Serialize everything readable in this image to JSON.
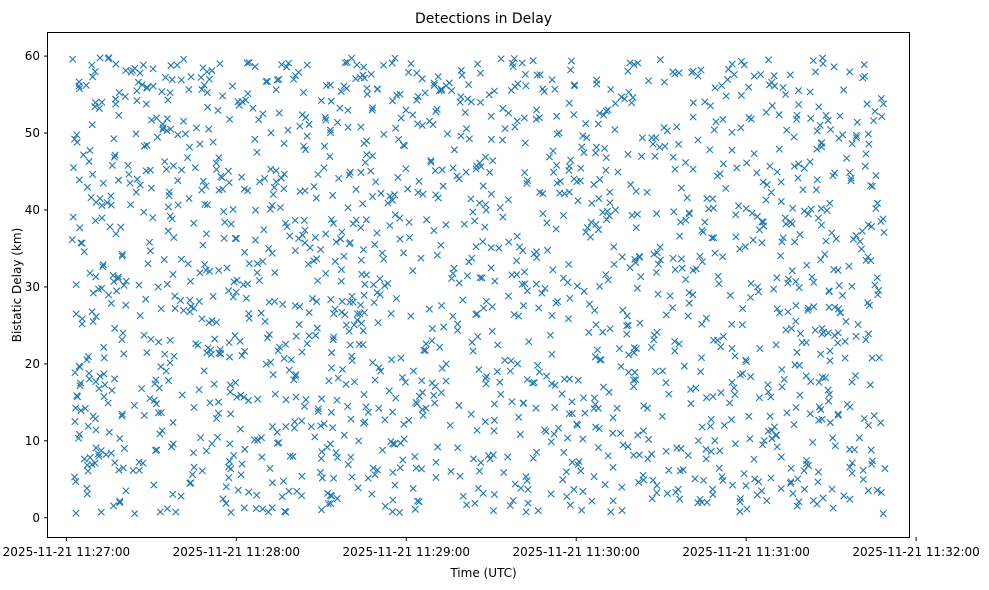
{
  "chart_data": {
    "type": "scatter",
    "title": "Detections in Delay",
    "xlabel": "Time (UTC)",
    "ylabel": "Bistatic Delay (km)",
    "marker": "x",
    "color": "#1f77b4",
    "grid": false,
    "legend": "none",
    "x_tick_labels": [
      "2025-11-21 11:27:00",
      "2025-11-21 11:28:00",
      "2025-11-21 11:29:00",
      "2025-11-21 11:30:00",
      "2025-11-21 11:31:00",
      "2025-11-21 11:32:00"
    ],
    "x_ticks_seconds_after_11_27_00": [
      0,
      60,
      120,
      180,
      240,
      300
    ],
    "y_tick_labels": [
      "0",
      "10",
      "20",
      "30",
      "40",
      "50",
      "60"
    ],
    "y_ticks": [
      0,
      10,
      20,
      30,
      40,
      50,
      60
    ],
    "xlim_seconds_after_11_27_00": [
      -6.5,
      297.5
    ],
    "ylim": [
      -2.5,
      63
    ],
    "x_data_range_seconds_after_11_27_00": [
      2,
      289
    ],
    "y_data_range": [
      0.5,
      59.8
    ],
    "approx_point_count": 1750,
    "series": [
      {
        "values": [
          [
            2.2,
            59.6
          ],
          [
            2.5,
            45.5
          ],
          [
            3.0,
            12.5
          ],
          [
            3.4,
            0.6
          ],
          [
            3.8,
            48.8
          ],
          [
            4.5,
            19.7
          ],
          [
            5.0,
            17.5
          ],
          [
            5.5,
            35.7
          ],
          [
            7.0,
            56.2
          ],
          [
            8.0,
            46.3
          ],
          [
            9.5,
            29.2
          ],
          [
            10.5,
            41.0
          ],
          [
            11.5,
            16.8
          ],
          [
            12.5,
            54.0
          ],
          [
            14.0,
            8.2
          ],
          [
            15.0,
            59.8
          ],
          [
            16.5,
            31.5
          ],
          [
            17.5,
            36.9
          ],
          [
            18.5,
            52.3
          ],
          [
            20.0,
            24.0
          ],
          [
            21.0,
            3.5
          ],
          [
            22.5,
            43.5
          ],
          [
            24.0,
            14.6
          ],
          [
            26.0,
            57.8
          ],
          [
            28.0,
            28.4
          ],
          [
            30.5,
            39.0
          ],
          [
            33.0,
            10.9
          ],
          [
            35.5,
            50.3
          ],
          [
            38.0,
            21.0
          ],
          [
            40.5,
            2.8
          ],
          [
            43.0,
            33.0
          ],
          [
            45.5,
            45.5
          ],
          [
            48.0,
            6.1
          ],
          [
            50.5,
            57.0
          ],
          [
            53.0,
            25.4
          ],
          [
            55.5,
            39.8
          ],
          [
            58.0,
            13.5
          ],
          [
            61.0,
            53.6
          ],
          [
            64.0,
            30.4
          ],
          [
            67.0,
            1.2
          ],
          [
            70.0,
            44.1
          ],
          [
            73.0,
            18.6
          ],
          [
            76.0,
            58.9
          ],
          [
            79.0,
            8.0
          ],
          [
            82.0,
            36.3
          ],
          [
            85.0,
            49.6
          ],
          [
            88.0,
            23.7
          ],
          [
            91.0,
            12.2
          ],
          [
            94.0,
            41.9
          ],
          [
            97.0,
            55.4
          ],
          [
            100.0,
            28.0
          ],
          [
            103.0,
            3.9
          ],
          [
            106.0,
            47.2
          ],
          [
            109.0,
            17.9
          ],
          [
            112.0,
            33.6
          ],
          [
            115.0,
            59.1
          ],
          [
            118.0,
            9.7
          ],
          [
            121.0,
            38.4
          ],
          [
            124.0,
            51.2
          ],
          [
            127.0,
            22.6
          ],
          [
            130.0,
            14.9
          ],
          [
            133.0,
            43.1
          ],
          [
            136.0,
            31.1
          ],
          [
            139.0,
            5.4
          ],
          [
            142.0,
            56.3
          ],
          [
            145.0,
            26.5
          ],
          [
            148.0,
            40.7
          ],
          [
            151.0,
            11.3
          ],
          [
            154.0,
            49.1
          ],
          [
            157.0,
            20.4
          ],
          [
            160.0,
            35.2
          ],
          [
            163.0,
            1.9
          ],
          [
            166.0,
            53.0
          ],
          [
            169.0,
            29.8
          ],
          [
            172.0,
            44.9
          ],
          [
            175.0,
            16.1
          ],
          [
            178.0,
            58.2
          ],
          [
            181.0,
            7.3
          ],
          [
            184.0,
            37.7
          ],
          [
            187.0,
            25.1
          ],
          [
            190.0,
            48.0
          ],
          [
            193.0,
            13.0
          ],
          [
            196.0,
            54.7
          ],
          [
            199.0,
            32.5
          ],
          [
            202.0,
            4.6
          ],
          [
            205.0,
            42.3
          ],
          [
            208.0,
            19.0
          ],
          [
            211.0,
            50.7
          ],
          [
            214.0,
            27.3
          ],
          [
            217.0,
            9.0
          ],
          [
            220.0,
            39.5
          ],
          [
            223.0,
            57.4
          ],
          [
            226.0,
            15.6
          ],
          [
            229.0,
            34.4
          ],
          [
            232.0,
            46.0
          ],
          [
            235.0,
            22.0
          ],
          [
            238.0,
            2.5
          ],
          [
            241.0,
            52.0
          ],
          [
            244.0,
            30.0
          ],
          [
            247.0,
            41.3
          ],
          [
            250.0,
            11.8
          ],
          [
            253.0,
            55.9
          ],
          [
            256.0,
            24.6
          ],
          [
            259.0,
            36.8
          ],
          [
            262.0,
            6.8
          ],
          [
            265.0,
            47.9
          ],
          [
            268.0,
            18.2
          ],
          [
            271.0,
            58.6
          ],
          [
            274.0,
            28.9
          ],
          [
            277.0,
            43.8
          ],
          [
            280.0,
            10.4
          ],
          [
            283.0,
            33.9
          ],
          [
            285.0,
            51.6
          ],
          [
            287.0,
            20.8
          ],
          [
            288.5,
            53.8
          ],
          [
            289.0,
            6.4
          ]
        ]
      }
    ]
  }
}
